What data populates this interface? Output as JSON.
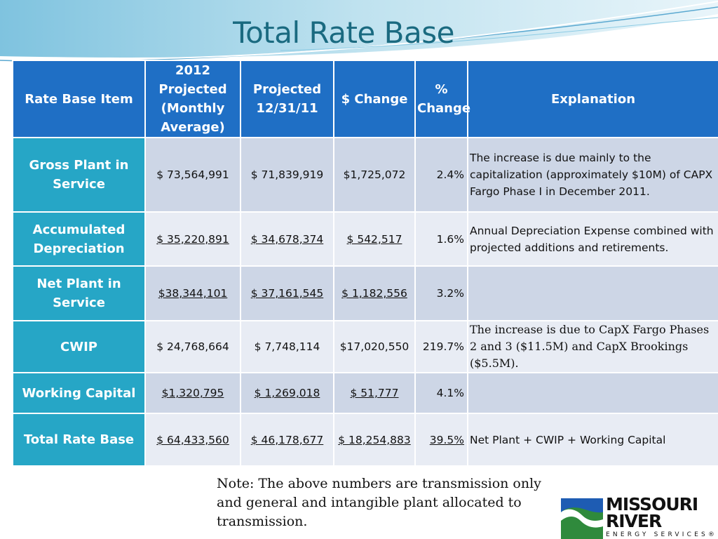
{
  "title": "Total Rate Base",
  "table": {
    "headers": [
      "Rate Base Item",
      "2012 Projected (Monthly Average)",
      "Projected 12/31/11",
      "$ Change",
      "% Change",
      "Explanation"
    ],
    "rows": [
      {
        "item": "Gross Plant in Service",
        "projected_2012": "$ 73,564,991",
        "projected_1231": "$ 71,839,919",
        "change": "$1,725,072",
        "pct_change": "2.4%",
        "explanation": "The increase is due mainly to the capitalization (approximately $10M) of CAPX Fargo Phase I in December 2011."
      },
      {
        "item": "Accumulated Depreciation",
        "projected_2012": "$ 35,220,891",
        "projected_1231": "$ 34,678,374",
        "change": "$ 542,517",
        "pct_change": "1.6%",
        "explanation": "Annual Depreciation Expense combined with projected additions and retirements."
      },
      {
        "item": "Net Plant in Service",
        "projected_2012": "$38,344,101",
        "projected_1231": "$ 37,161,545",
        "change": "$ 1,182,556",
        "pct_change": "3.2%",
        "explanation": ""
      },
      {
        "item": "CWIP",
        "projected_2012": "$ 24,768,664",
        "projected_1231": "$ 7,748,114",
        "change": "$17,020,550",
        "pct_change": "219.7%",
        "explanation": "The increase is due to CapX Fargo Phases 2 and 3 ($11.5M) and CapX Brookings ($5.5M)."
      },
      {
        "item": "Working Capital",
        "projected_2012": "$1,320,795",
        "projected_1231": "$ 1,269,018",
        "change": "$ 51,777",
        "pct_change": "4.1%",
        "explanation": ""
      },
      {
        "item": "Total Rate Base",
        "projected_2012": "$ 64,433,560",
        "projected_1231": "$ 46,178,677",
        "change": "$ 18,254,883",
        "pct_change": "39.5%",
        "explanation": "Net Plant + CWIP + Working Capital"
      }
    ]
  },
  "note": "Note: The above numbers are transmission only and general and intangible plant allocated to transmission.",
  "logo": {
    "line1": "MISSOURI",
    "line2": "RIVER",
    "tagline": "ENERGY SERVICES®"
  },
  "colors": {
    "header_bg": "#1f6fc5",
    "row_header_bg": "#26a6c6",
    "row_odd_bg": "#cdd6e6",
    "row_even_bg": "#e8ecf4",
    "title_color": "#1a6a80"
  }
}
